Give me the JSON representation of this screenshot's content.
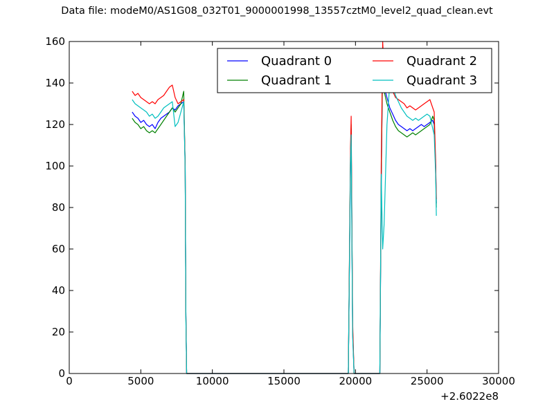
{
  "chart_data": {
    "type": "line",
    "title": "Data file: modeM0/AS1G08_032T01_9000001998_13557cztM0_level2_quad_clean.evt",
    "xlabel": "",
    "ylabel": "",
    "x_offset_label": "+2.6022e8",
    "xlim": [
      0,
      30000
    ],
    "ylim": [
      0,
      160
    ],
    "x_ticks": [
      "0",
      "5000",
      "10000",
      "15000",
      "20000",
      "25000",
      "30000"
    ],
    "y_ticks": [
      "0",
      "20",
      "40",
      "60",
      "80",
      "100",
      "120",
      "140",
      "160"
    ],
    "grid": false,
    "legend_position": "upper right",
    "legend_columns": 2,
    "series": [
      {
        "name": "Quadrant 0",
        "color": "#0000ff",
        "x": [
          4400,
          4600,
          4800,
          5000,
          5200,
          5400,
          5600,
          5800,
          6000,
          6200,
          6400,
          6600,
          6800,
          7000,
          7200,
          7400,
          7600,
          7800,
          8000,
          8100,
          8150,
          8200,
          19500,
          19650,
          19700,
          19800,
          19900,
          20000,
          21700,
          21800,
          21900,
          22000,
          22200,
          22400,
          22600,
          22800,
          23000,
          23200,
          23400,
          23600,
          23800,
          24000,
          24200,
          24400,
          24600,
          24800,
          25000,
          25200,
          25400,
          25500,
          25600,
          25650
        ],
        "y": [
          126,
          124,
          123,
          121,
          122,
          120,
          119,
          120,
          118,
          121,
          123,
          124,
          125,
          126,
          128,
          127,
          129,
          130,
          131,
          100,
          30,
          0,
          0,
          100,
          118,
          20,
          0,
          0,
          0,
          90,
          155,
          138,
          133,
          128,
          125,
          122,
          120,
          119,
          118,
          117,
          118,
          117,
          118,
          119,
          120,
          119,
          120,
          121,
          122,
          120,
          100,
          82
        ]
      },
      {
        "name": "Quadrant 1",
        "color": "#008000",
        "x": [
          4400,
          4600,
          4800,
          5000,
          5200,
          5400,
          5600,
          5800,
          6000,
          6200,
          6400,
          6600,
          6800,
          7000,
          7200,
          7400,
          7600,
          7800,
          8000,
          8100,
          8150,
          8200,
          19500,
          19650,
          19700,
          19800,
          19900,
          20000,
          21700,
          21800,
          21900,
          22000,
          22200,
          22400,
          22600,
          22800,
          23000,
          23200,
          23400,
          23600,
          23800,
          24000,
          24200,
          24400,
          24600,
          24800,
          25000,
          25200,
          25400,
          25500,
          25600,
          25650
        ],
        "y": [
          123,
          121,
          120,
          118,
          119,
          117,
          116,
          117,
          116,
          118,
          120,
          122,
          124,
          126,
          128,
          126,
          128,
          130,
          136,
          100,
          28,
          0,
          0,
          105,
          120,
          22,
          0,
          0,
          0,
          92,
          152,
          136,
          130,
          126,
          122,
          119,
          117,
          116,
          115,
          114,
          115,
          116,
          115,
          116,
          117,
          118,
          119,
          120,
          124,
          122,
          98,
          80
        ]
      },
      {
        "name": "Quadrant 2",
        "color": "#ff0000",
        "x": [
          4400,
          4600,
          4800,
          5000,
          5200,
          5400,
          5600,
          5800,
          6000,
          6200,
          6400,
          6600,
          6800,
          7000,
          7200,
          7400,
          7600,
          7800,
          8000,
          8100,
          8150,
          8200,
          19500,
          19650,
          19700,
          19800,
          19900,
          20000,
          21700,
          21800,
          21900,
          22000,
          22200,
          22400,
          22600,
          22800,
          23000,
          23200,
          23400,
          23600,
          23800,
          24000,
          24200,
          24400,
          24600,
          24800,
          25000,
          25200,
          25400,
          25500,
          25600,
          25650
        ],
        "y": [
          136,
          134,
          135,
          133,
          132,
          131,
          130,
          131,
          130,
          132,
          133,
          134,
          136,
          138,
          139,
          133,
          130,
          131,
          132,
          100,
          30,
          0,
          0,
          108,
          124,
          25,
          0,
          0,
          0,
          100,
          160,
          145,
          140,
          138,
          136,
          133,
          132,
          131,
          130,
          128,
          129,
          128,
          127,
          128,
          129,
          130,
          131,
          132,
          128,
          126,
          102,
          84
        ]
      },
      {
        "name": "Quadrant 3",
        "color": "#00bfbf",
        "x": [
          4400,
          4600,
          4800,
          5000,
          5200,
          5400,
          5600,
          5800,
          6000,
          6200,
          6400,
          6600,
          6800,
          7000,
          7200,
          7400,
          7600,
          7800,
          8000,
          8100,
          8150,
          8200,
          19500,
          19650,
          19700,
          19800,
          19900,
          20000,
          21700,
          21800,
          21900,
          22000,
          22200,
          22400,
          22600,
          22800,
          23000,
          23200,
          23400,
          23600,
          23800,
          24000,
          24200,
          24400,
          24600,
          24800,
          25000,
          25200,
          25400,
          25500,
          25600,
          25650
        ],
        "y": [
          132,
          130,
          129,
          128,
          127,
          126,
          124,
          125,
          123,
          124,
          126,
          128,
          129,
          130,
          131,
          119,
          121,
          126,
          131,
          98,
          28,
          0,
          0,
          102,
          115,
          18,
          0,
          0,
          0,
          96,
          60,
          72,
          120,
          140,
          138,
          134,
          131,
          128,
          126,
          124,
          123,
          122,
          123,
          122,
          123,
          124,
          125,
          124,
          118,
          115,
          96,
          76
        ]
      }
    ]
  }
}
